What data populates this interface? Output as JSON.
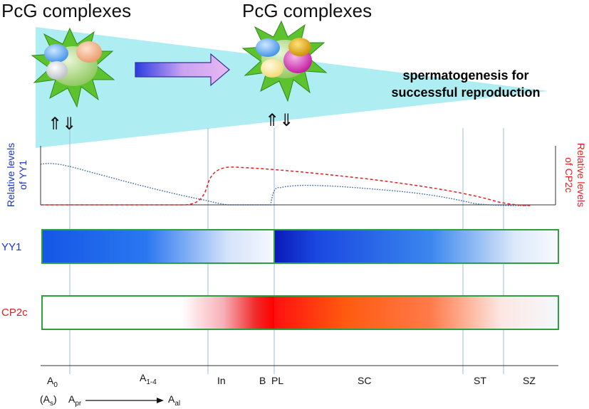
{
  "titles": {
    "left": "PcG complexes",
    "right": "PcG complexes"
  },
  "banner": {
    "line1": "spermatogenesis for",
    "line2": "successful reproduction"
  },
  "arrows_symbol": "⇑⇓",
  "axes": {
    "left_label_line1": "Relative levels",
    "left_label_line2": "of YY1",
    "right_label_line1": "Relative levels",
    "right_label_line2": "of CP2c"
  },
  "rows": {
    "yy1": "YY1",
    "cp2c": "CP2c"
  },
  "stages": {
    "a0_base": "A",
    "a0_sub": "0",
    "a14_base": "A",
    "a14_sub": "1-4",
    "in": "In",
    "b": "B",
    "pl": "PL",
    "sc": "SC",
    "st": "ST",
    "sz": "SZ",
    "as_open": "(A",
    "as_sub": "s",
    "as_close": ")",
    "apr_base": "A",
    "apr_sub": "pr",
    "aal_base": "A",
    "aal_sub": "al"
  },
  "colors": {
    "yy1": "#1a33cc",
    "cp2c": "#e02020",
    "box_border": "#2e9e3e",
    "banner": "#aeeef2",
    "guide": "#9fb8d6"
  }
}
